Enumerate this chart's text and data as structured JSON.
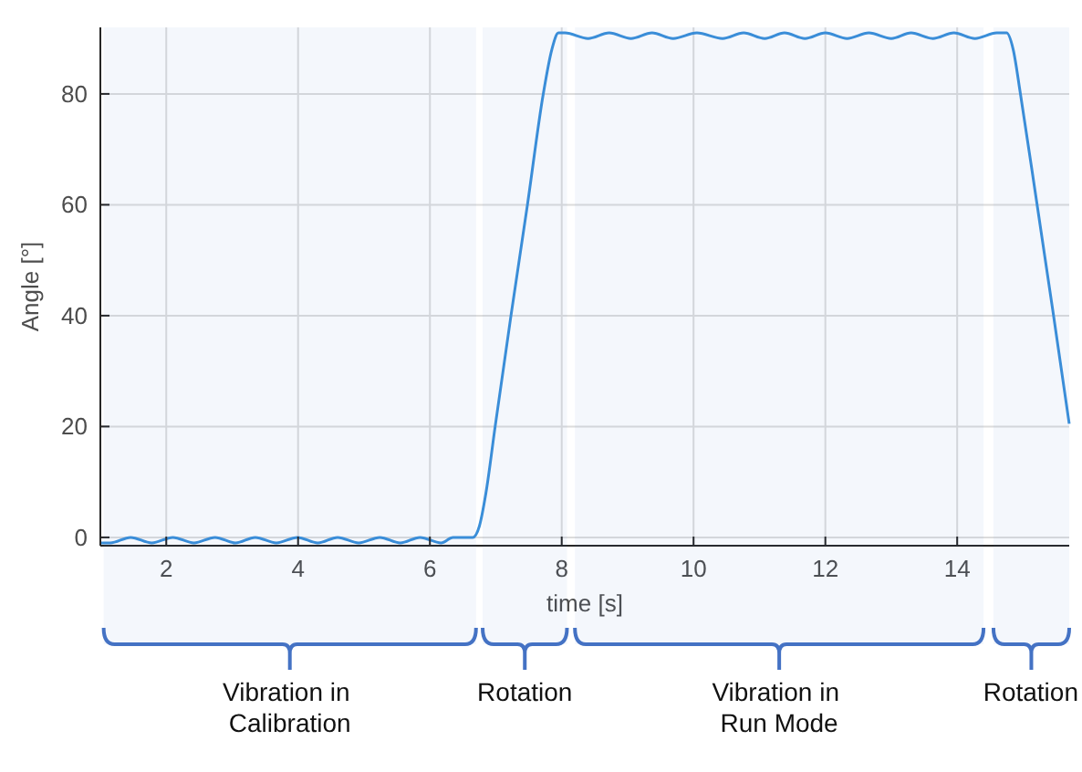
{
  "chart_data": {
    "type": "line",
    "xlabel": "time [s]",
    "ylabel": "Angle [°]",
    "xlim": [
      1,
      15.7
    ],
    "ylim": [
      -1.5,
      92
    ],
    "xticks": [
      2,
      4,
      6,
      8,
      10,
      12,
      14
    ],
    "yticks": [
      0,
      20,
      40,
      60,
      80
    ],
    "grid": true,
    "line_style": "solid",
    "marker": "none",
    "x": [
      1.0,
      1.15,
      1.46,
      1.78,
      2.1,
      2.42,
      2.74,
      3.05,
      3.35,
      3.67,
      3.99,
      4.3,
      4.6,
      4.92,
      5.24,
      5.55,
      5.85,
      6.17,
      6.35,
      6.65,
      6.75,
      6.85,
      6.99,
      7.23,
      7.48,
      7.72,
      7.85,
      7.95,
      8.05,
      8.4,
      8.72,
      9.05,
      9.37,
      9.69,
      10.05,
      10.44,
      10.76,
      11.08,
      11.38,
      11.69,
      12.0,
      12.33,
      12.66,
      13.0,
      13.3,
      13.63,
      13.95,
      14.27,
      14.6,
      14.75,
      14.85,
      14.96,
      15.2,
      15.45,
      15.7
    ],
    "series": [
      {
        "color": "#3a8fd9",
        "values": [
          -1,
          -1,
          0,
          -1,
          0,
          -1,
          0,
          -1,
          0,
          -1,
          0,
          -1,
          0,
          -1,
          0,
          -1,
          0,
          -1,
          0,
          0,
          2,
          8,
          20,
          40,
          60,
          80,
          88,
          91,
          91,
          90,
          91,
          90,
          91,
          90,
          91,
          90,
          91,
          90,
          91,
          90,
          91,
          90,
          91,
          90,
          91,
          90,
          91,
          90,
          91,
          91,
          88,
          80,
          61,
          41,
          20.5
        ]
      }
    ],
    "bands": [
      {
        "axis": "x",
        "from": 1.05,
        "to": 6.7,
        "label": "Vibration in Calibration",
        "color": "#4472c4"
      },
      {
        "axis": "x",
        "from": 6.8,
        "to": 8.08,
        "label": "Rotation",
        "color": "#4472c4"
      },
      {
        "axis": "x",
        "from": 8.2,
        "to": 14.4,
        "label": "Vibration in Run Mode",
        "color": "#4472c4"
      },
      {
        "axis": "x",
        "from": 14.55,
        "to": 15.7,
        "label": "Rotation",
        "color": "#4472c4"
      }
    ]
  }
}
